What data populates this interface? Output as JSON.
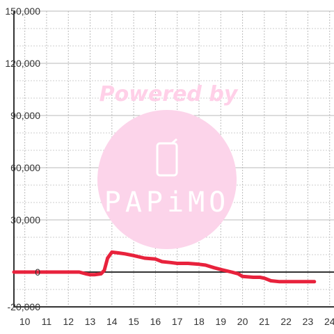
{
  "chart_data": {
    "type": "line",
    "title": "",
    "xlabel": "",
    "ylabel": "",
    "xlim": [
      9.5,
      24.2
    ],
    "ylim": [
      -20000,
      150000
    ],
    "x_ticks": [
      10,
      11,
      12,
      13,
      14,
      15,
      16,
      17,
      18,
      19,
      20,
      21,
      22,
      23,
      24
    ],
    "x_tick_labels": [
      "10",
      "11",
      "12",
      "13",
      "14",
      "15",
      "16",
      "17",
      "18",
      "19",
      "20",
      "21",
      "22",
      "23",
      "24"
    ],
    "y_ticks": [
      -20000,
      0,
      30000,
      60000,
      90000,
      120000,
      150000
    ],
    "y_tick_labels": [
      "-20,000",
      "0",
      "30,000",
      "60,000",
      "90,000",
      "120,000",
      "150,000"
    ],
    "grid": true,
    "line_color": "#e8223c",
    "series": [
      {
        "x": [
          9.5,
          10,
          11,
          12,
          12.5,
          12.8,
          13.0,
          13.2,
          13.5,
          13.65,
          13.8,
          14.0,
          14.3,
          14.6,
          15.0,
          15.5,
          16.0,
          16.3,
          16.7,
          17.0,
          17.5,
          18.0,
          18.3,
          18.7,
          19.0,
          19.5,
          19.8,
          20.0,
          20.5,
          20.8,
          21.0,
          21.3,
          21.7,
          22.0,
          22.5,
          23.0,
          23.3
        ],
        "y": [
          0,
          0,
          0,
          0,
          0,
          -1000,
          -1500,
          -1500,
          -1000,
          1000,
          8000,
          11500,
          11000,
          10500,
          9500,
          8000,
          7500,
          6000,
          5500,
          5000,
          5000,
          4500,
          4000,
          2500,
          1500,
          0,
          -1000,
          -2500,
          -3000,
          -3000,
          -3500,
          -5000,
          -5500,
          -5500,
          -5500,
          -5500,
          -5500
        ]
      }
    ]
  },
  "watermark": {
    "line1": "Powered by",
    "logo_text": "PAPiMO",
    "color": "#fcd4ea"
  }
}
